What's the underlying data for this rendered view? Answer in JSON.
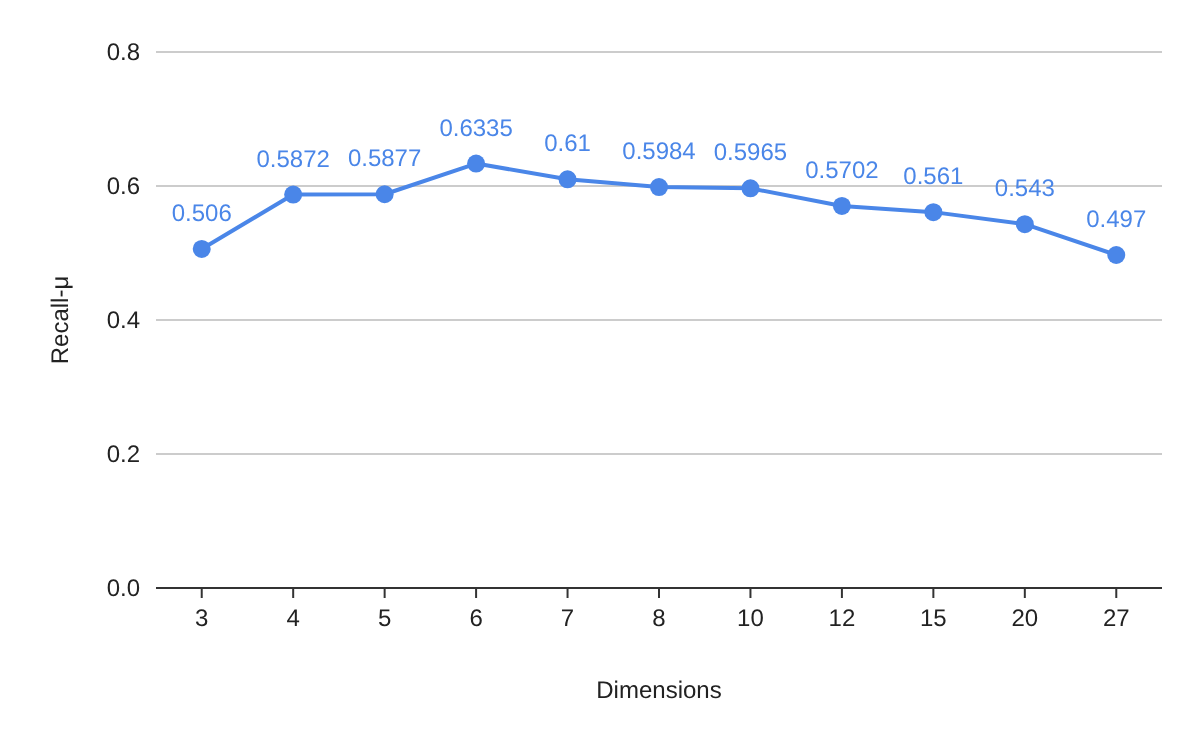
{
  "chart_data": {
    "type": "line",
    "xlabel": "Dimensions",
    "ylabel": "Recall-μ",
    "categories": [
      "3",
      "4",
      "5",
      "6",
      "7",
      "8",
      "10",
      "12",
      "15",
      "20",
      "27"
    ],
    "series": [
      {
        "color": "#4a86e8",
        "values": [
          0.506,
          0.5872,
          0.5877,
          0.6335,
          0.61,
          0.5984,
          0.5965,
          0.5702,
          0.561,
          0.543,
          0.497
        ]
      }
    ],
    "ylim": [
      0,
      0.8
    ],
    "yticks": [
      {
        "value": 0,
        "label": "0.0"
      },
      {
        "value": 0.2,
        "label": "0.2"
      },
      {
        "value": 0.4,
        "label": "0.4"
      },
      {
        "value": 0.6,
        "label": "0.6"
      },
      {
        "value": 0.8,
        "label": "0.8"
      }
    ],
    "grid": "y",
    "data_labels": true,
    "marker": "circle",
    "line_style": "solid"
  }
}
